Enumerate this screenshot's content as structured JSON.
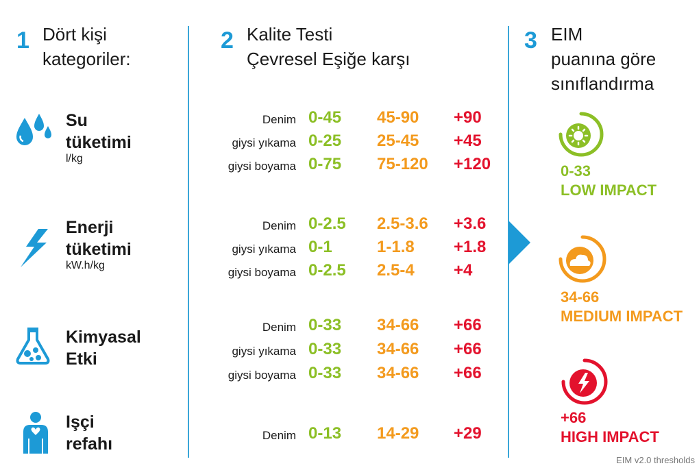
{
  "steps": [
    {
      "num": "1",
      "title_l1": "Dört kişi",
      "title_l2": "kategoriler:"
    },
    {
      "num": "2",
      "title_l1": "Kalite Testi",
      "title_l2": "Çevresel Eşiğe karşı"
    },
    {
      "num": "3",
      "title_l1": "EIM",
      "title_l2": "puanına göre",
      "title_l3": "sınıflandırma"
    }
  ],
  "categories": [
    {
      "l1": "Su",
      "l2": "tüketimi",
      "unit": "l/kg",
      "icon": "water-drops-icon"
    },
    {
      "l1": "Enerji",
      "l2": "tüketimi",
      "unit": "kW.h/kg",
      "icon": "lightning-icon"
    },
    {
      "l1": "Kimyasal",
      "l2": "Etki",
      "unit": "",
      "icon": "flask-icon"
    },
    {
      "l1": "Işçi",
      "l2": "refahı",
      "unit": "",
      "icon": "worker-icon"
    }
  ],
  "thresholds": [
    {
      "label": "Denim",
      "low": "0-45",
      "mid": "45-90",
      "high": "+90"
    },
    {
      "label": "giysi yıkama",
      "low": "0-25",
      "mid": "25-45",
      "high": "+45"
    },
    {
      "label": "giysi boyama",
      "low": "0-75",
      "mid": "75-120",
      "high": "+120"
    },
    {
      "label": "Denim",
      "low": "0-2.5",
      "mid": "2.5-3.6",
      "high": "+3.6"
    },
    {
      "label": "giysi yıkama",
      "low": "0-1",
      "mid": "1-1.8",
      "high": "+1.8"
    },
    {
      "label": "giysi boyama",
      "low": "0-2.5",
      "mid": "2.5-4",
      "high": "+4"
    },
    {
      "label": "Denim",
      "low": "0-33",
      "mid": "34-66",
      "high": "+66"
    },
    {
      "label": "giysi yıkama",
      "low": "0-33",
      "mid": "34-66",
      "high": "+66"
    },
    {
      "label": "giysi boyama",
      "low": "0-33",
      "mid": "34-66",
      "high": "+66"
    },
    {
      "label": "Denim",
      "low": "0-13",
      "mid": "14-29",
      "high": "+29"
    }
  ],
  "impacts": [
    {
      "range": "0-33",
      "label": "LOW IMPACT",
      "color": "#8cbf26",
      "icon": "sun-icon"
    },
    {
      "range": "34-66",
      "label": "MEDIUM IMPACT",
      "color": "#f39a1d",
      "icon": "cloud-icon"
    },
    {
      "range": "+66",
      "label": "HIGH IMPACT",
      "color": "#e3122d",
      "icon": "lightning-icon"
    }
  ],
  "colors": {
    "accent": "#1d9ad6",
    "low": "#8cbf26",
    "mid": "#f39a1d",
    "high": "#e3122d"
  },
  "footnote": "EIM v2.0 thresholds"
}
